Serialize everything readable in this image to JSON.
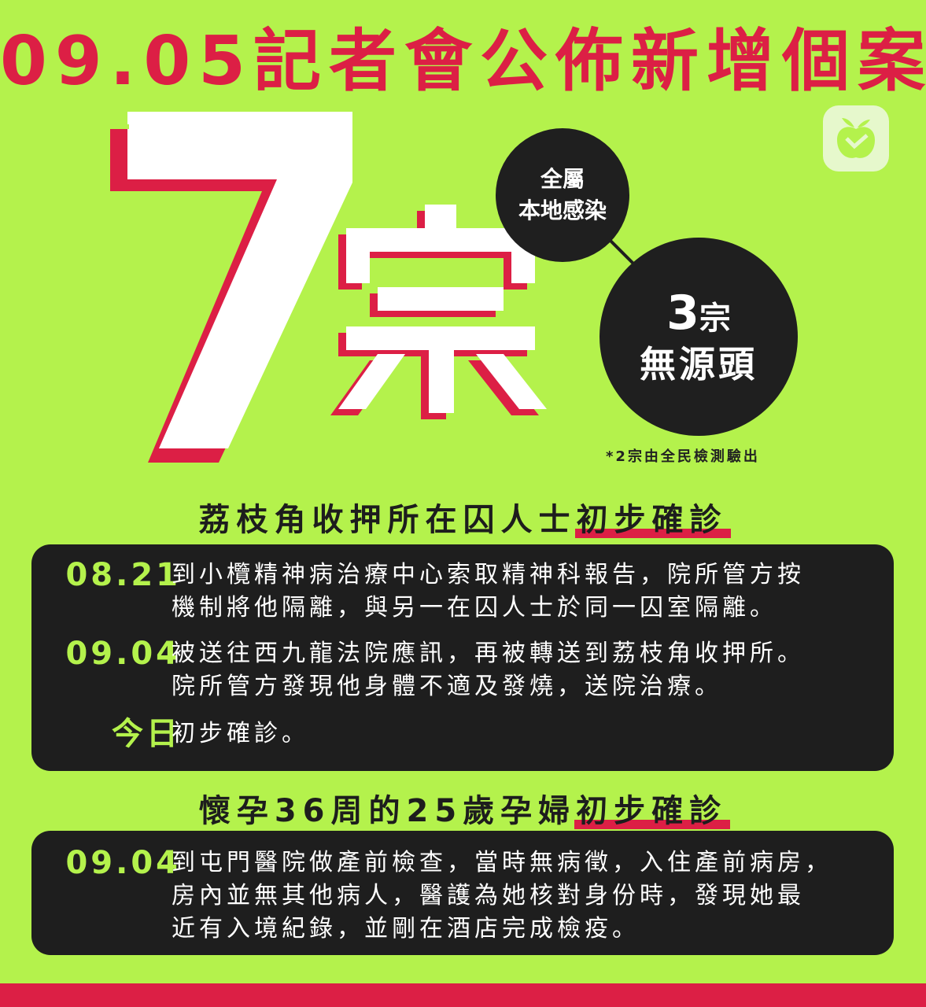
{
  "headline": "09.05記者會公佈新增個案",
  "total": {
    "number": "7",
    "unit": "宗"
  },
  "local_badge": {
    "line1": "全屬",
    "line2": "本地感染"
  },
  "unknown_source": {
    "number": "3",
    "unit": "宗",
    "label": "無源頭"
  },
  "footnote": "*2宗由全民檢測驗出",
  "section1": {
    "title": "荔枝角收押所在囚人士",
    "highlight": "初步確診",
    "entries": [
      {
        "date": "08.21",
        "line1": "到小欖精神病治療中心索取精神科報告，院所管方按",
        "line2": "機制將他隔離，與另一在囚人士於同一囚室隔離。"
      },
      {
        "date": "09.04",
        "line1": "被送往西九龍法院應訊，再被轉送到荔枝角收押所。",
        "line2": "院所管方發現他身體不適及發燒，送院治療。"
      },
      {
        "date": "今日",
        "line1": "初步確診。"
      }
    ]
  },
  "section2": {
    "title": "懷孕36周的25歲孕婦",
    "highlight": "初步確診",
    "entries": [
      {
        "date": "09.04",
        "line1": "到屯門醫院做產前檢查，當時無病徵，入住產前病房，",
        "line2": "房內並無其他病人，醫護為她核對身份時，發現她最",
        "line3": "近有入境紀錄，並剛在酒店完成檢疫。"
      }
    ]
  },
  "colors": {
    "background": "#b4f24c",
    "accent": "#dc1f45",
    "panel": "#1e1e1e"
  },
  "icons": {
    "logo": "apple-logo-icon"
  }
}
